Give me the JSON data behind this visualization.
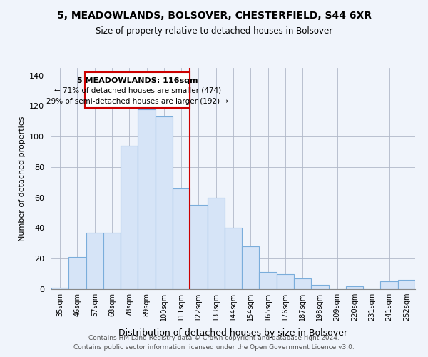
{
  "title": "5, MEADOWLANDS, BOLSOVER, CHESTERFIELD, S44 6XR",
  "subtitle": "Size of property relative to detached houses in Bolsover",
  "xlabel": "Distribution of detached houses by size in Bolsover",
  "ylabel": "Number of detached properties",
  "bar_labels": [
    "35sqm",
    "46sqm",
    "57sqm",
    "68sqm",
    "78sqm",
    "89sqm",
    "100sqm",
    "111sqm",
    "122sqm",
    "133sqm",
    "144sqm",
    "154sqm",
    "165sqm",
    "176sqm",
    "187sqm",
    "198sqm",
    "209sqm",
    "220sqm",
    "231sqm",
    "241sqm",
    "252sqm"
  ],
  "bar_values": [
    1,
    21,
    37,
    37,
    94,
    118,
    113,
    66,
    55,
    60,
    40,
    28,
    11,
    10,
    7,
    3,
    0,
    2,
    0,
    5,
    6
  ],
  "bar_color": "#d6e4f7",
  "bar_edge_color": "#7aaddb",
  "marker_line_color": "#cc0000",
  "marker_box_color": "#cc0000",
  "annotation_line1": "5 MEADOWLANDS: 116sqm",
  "annotation_line2": "← 71% of detached houses are smaller (474)",
  "annotation_line3": "29% of semi-detached houses are larger (192) →",
  "ylim": [
    0,
    145
  ],
  "yticks": [
    0,
    20,
    40,
    60,
    80,
    100,
    120,
    140
  ],
  "footer1": "Contains HM Land Registry data © Crown copyright and database right 2024.",
  "footer2": "Contains public sector information licensed under the Open Government Licence v3.0.",
  "background_color": "#f0f4fb",
  "grid_color": "#b0b8c8"
}
